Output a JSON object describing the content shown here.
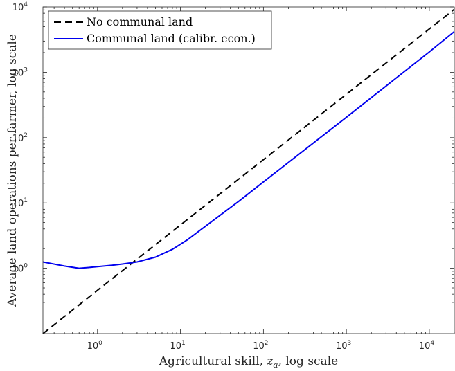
{
  "chart_data": {
    "type": "line",
    "title": "",
    "xlabel": "Agricultural skill, z_a, log scale",
    "xlabel_parts": {
      "pre": "Agricultural skill, ",
      "var": "z",
      "sub": "a",
      "post": ", log scale"
    },
    "ylabel": "Average land operations per farmer, log scale",
    "x_scale": "log",
    "y_scale": "log",
    "xlim": [
      0.22,
      20000
    ],
    "ylim": [
      0.1,
      10000
    ],
    "x_ticks": [
      {
        "base": "10",
        "exp": "0",
        "value": 1
      },
      {
        "base": "10",
        "exp": "1",
        "value": 10
      },
      {
        "base": "10",
        "exp": "2",
        "value": 100
      },
      {
        "base": "10",
        "exp": "3",
        "value": 1000
      },
      {
        "base": "10",
        "exp": "4",
        "value": 10000
      }
    ],
    "y_ticks": [
      {
        "base": "10",
        "exp": "0",
        "value": 1
      },
      {
        "base": "10",
        "exp": "1",
        "value": 10
      },
      {
        "base": "10",
        "exp": "2",
        "value": 100
      },
      {
        "base": "10",
        "exp": "3",
        "value": 1000
      },
      {
        "base": "10",
        "exp": "4",
        "value": 10000
      }
    ],
    "grid": false,
    "legend_position": "top-left",
    "series": [
      {
        "name": "No communal land",
        "color": "#000000",
        "style": "dashed",
        "x": [
          0.22,
          1,
          10,
          100,
          1000,
          10000,
          20000
        ],
        "y": [
          0.1,
          0.46,
          4.6,
          46,
          460,
          4600,
          9200
        ]
      },
      {
        "name": "Communal land (calibr. econ.)",
        "color": "#0000ee",
        "style": "solid",
        "x": [
          0.22,
          0.4,
          0.6,
          0.8,
          1,
          1.5,
          2,
          3,
          5,
          8,
          12,
          20,
          50,
          100,
          1000,
          10000,
          20000
        ],
        "y": [
          1.25,
          1.08,
          1.0,
          1.03,
          1.06,
          1.11,
          1.16,
          1.25,
          1.48,
          1.95,
          2.7,
          4.4,
          10.5,
          21,
          205,
          2050,
          4200
        ]
      }
    ]
  }
}
